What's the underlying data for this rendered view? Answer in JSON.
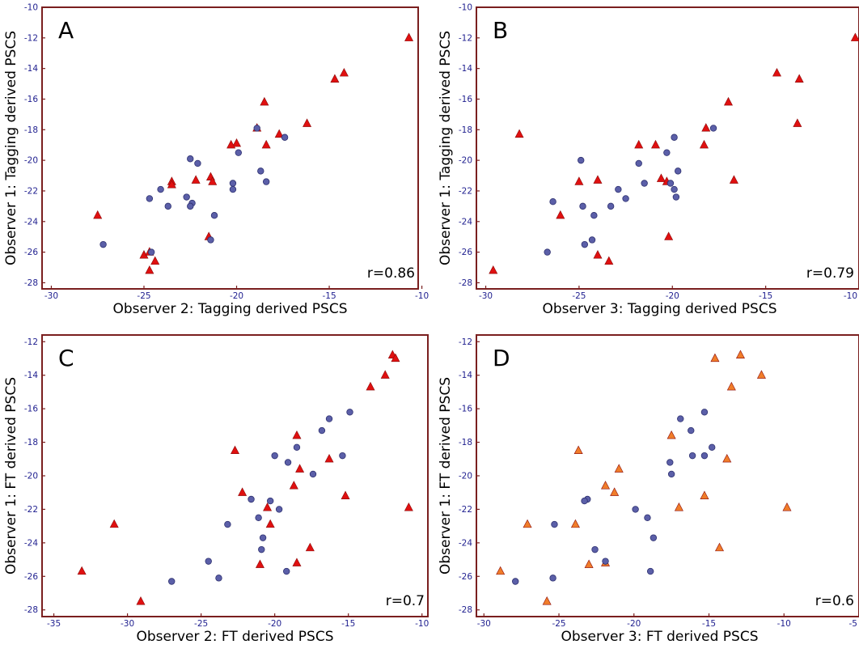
{
  "colors": {
    "frame": "#7a1f1f",
    "tick_label": "#1f1f8f",
    "circle_fill": "#5b5fa8",
    "circle_stroke": "#2e3170",
    "triangle_red": "#e01010",
    "triangle_orange": "#f07d2a"
  },
  "chart_data": [
    {
      "type": "scatter",
      "panel_label": "A",
      "xlabel": "Observer 2: Tagging derived PSCS",
      "ylabel": "Observer 1: Tagging derived PSCS",
      "annotation": "r=0.86",
      "xlim": [
        -30.5,
        -10.2
      ],
      "ylim": [
        -28.4,
        -10
      ],
      "xticks": [
        -30,
        -25,
        -20,
        -15,
        -10
      ],
      "yticks": [
        -10,
        -12,
        -14,
        -16,
        -18,
        -20,
        -22,
        -24,
        -26,
        -28
      ],
      "grid": false,
      "series": [
        {
          "marker": "triangle",
          "color": "#e01010",
          "points": [
            [
              -10.7,
              -12.0
            ],
            [
              -14.2,
              -14.3
            ],
            [
              -14.7,
              -14.7
            ],
            [
              -18.5,
              -16.2
            ],
            [
              -16.2,
              -17.6
            ],
            [
              -17.7,
              -18.3
            ],
            [
              -18.9,
              -17.9
            ],
            [
              -18.4,
              -19.0
            ],
            [
              -20.0,
              -18.9
            ],
            [
              -20.3,
              -19.0
            ],
            [
              -22.2,
              -21.3
            ],
            [
              -23.5,
              -21.4
            ],
            [
              -23.5,
              -21.6
            ],
            [
              -21.4,
              -21.1
            ],
            [
              -21.3,
              -21.4
            ],
            [
              -27.5,
              -23.6
            ],
            [
              -21.5,
              -25.0
            ],
            [
              -25.0,
              -26.2
            ],
            [
              -24.7,
              -26.0
            ],
            [
              -24.4,
              -26.6
            ],
            [
              -24.7,
              -27.2
            ]
          ]
        },
        {
          "marker": "circle",
          "color": "#5b5fa8",
          "points": [
            [
              -27.2,
              -25.5
            ],
            [
              -18.9,
              -17.9
            ],
            [
              -17.4,
              -18.5
            ],
            [
              -19.9,
              -19.5
            ],
            [
              -22.5,
              -19.9
            ],
            [
              -22.1,
              -20.2
            ],
            [
              -18.7,
              -20.7
            ],
            [
              -20.2,
              -21.5
            ],
            [
              -20.2,
              -21.9
            ],
            [
              -24.1,
              -21.9
            ],
            [
              -18.4,
              -21.4
            ],
            [
              -24.7,
              -22.5
            ],
            [
              -22.7,
              -22.4
            ],
            [
              -22.4,
              -22.8
            ],
            [
              -22.5,
              -23.0
            ],
            [
              -23.7,
              -23.0
            ],
            [
              -21.2,
              -23.6
            ],
            [
              -21.4,
              -25.2
            ],
            [
              -24.6,
              -26.0
            ]
          ]
        }
      ]
    },
    {
      "type": "scatter",
      "panel_label": "B",
      "xlabel": "Observer 3: Tagging derived PSCS",
      "ylabel": "Observer 1: Tagging derived PSCS",
      "annotation": "r=0.79",
      "xlim": [
        -30.5,
        -10
      ],
      "ylim": [
        -28.4,
        -10
      ],
      "xticks": [
        -30,
        -25,
        -20,
        -15,
        -10
      ],
      "yticks": [
        -10,
        -12,
        -14,
        -16,
        -18,
        -20,
        -22,
        -24,
        -26,
        -28
      ],
      "grid": false,
      "series": [
        {
          "marker": "triangle",
          "color": "#e01010",
          "points": [
            [
              -10.2,
              -12.0
            ],
            [
              -14.4,
              -14.3
            ],
            [
              -13.2,
              -14.7
            ],
            [
              -17.0,
              -16.2
            ],
            [
              -13.3,
              -17.6
            ],
            [
              -18.2,
              -17.9
            ],
            [
              -28.2,
              -18.3
            ],
            [
              -18.3,
              -19.0
            ],
            [
              -21.8,
              -19.0
            ],
            [
              -20.9,
              -19.0
            ],
            [
              -20.6,
              -21.2
            ],
            [
              -20.3,
              -21.4
            ],
            [
              -25.0,
              -21.4
            ],
            [
              -24.0,
              -21.3
            ],
            [
              -16.7,
              -21.3
            ],
            [
              -26.0,
              -23.6
            ],
            [
              -20.2,
              -25.0
            ],
            [
              -24.0,
              -26.2
            ],
            [
              -23.4,
              -26.6
            ],
            [
              -29.6,
              -27.2
            ]
          ]
        },
        {
          "marker": "circle",
          "color": "#5b5fa8",
          "points": [
            [
              -17.8,
              -17.9
            ],
            [
              -19.9,
              -18.5
            ],
            [
              -20.3,
              -19.5
            ],
            [
              -24.9,
              -20.0
            ],
            [
              -21.8,
              -20.2
            ],
            [
              -19.7,
              -20.7
            ],
            [
              -21.5,
              -21.5
            ],
            [
              -20.1,
              -21.5
            ],
            [
              -19.9,
              -21.9
            ],
            [
              -22.9,
              -21.9
            ],
            [
              -19.8,
              -22.4
            ],
            [
              -22.5,
              -22.5
            ],
            [
              -26.4,
              -22.7
            ],
            [
              -24.8,
              -23.0
            ],
            [
              -23.3,
              -23.0
            ],
            [
              -24.2,
              -23.6
            ],
            [
              -24.3,
              -25.2
            ],
            [
              -24.7,
              -25.5
            ],
            [
              -26.7,
              -26.0
            ]
          ]
        }
      ]
    },
    {
      "type": "scatter",
      "panel_label": "C",
      "xlabel": "Observer 2: FT derived PSCS",
      "ylabel": "Observer 1: FT derived PSCS",
      "annotation": "r=0.7",
      "xlim": [
        -35.8,
        -9.6
      ],
      "ylim": [
        -28.4,
        -11.6
      ],
      "xticks": [
        -35,
        -30,
        -25,
        -20,
        -15,
        -10
      ],
      "yticks": [
        -12,
        -14,
        -16,
        -18,
        -20,
        -22,
        -24,
        -26,
        -28
      ],
      "grid": false,
      "series": [
        {
          "marker": "triangle",
          "color": "#e01010",
          "points": [
            [
              -12.0,
              -12.8
            ],
            [
              -11.8,
              -13.0
            ],
            [
              -12.5,
              -14.0
            ],
            [
              -13.5,
              -14.7
            ],
            [
              -22.7,
              -18.5
            ],
            [
              -18.5,
              -17.6
            ],
            [
              -18.3,
              -19.6
            ],
            [
              -16.3,
              -19.0
            ],
            [
              -18.7,
              -20.6
            ],
            [
              -22.2,
              -21.0
            ],
            [
              -15.2,
              -21.2
            ],
            [
              -10.9,
              -21.9
            ],
            [
              -20.5,
              -21.9
            ],
            [
              -20.3,
              -22.9
            ],
            [
              -30.9,
              -22.9
            ],
            [
              -17.6,
              -24.3
            ],
            [
              -21.0,
              -25.3
            ],
            [
              -18.5,
              -25.2
            ],
            [
              -33.1,
              -25.7
            ],
            [
              -29.1,
              -27.5
            ]
          ]
        },
        {
          "marker": "circle",
          "color": "#5b5fa8",
          "points": [
            [
              -14.9,
              -16.2
            ],
            [
              -16.3,
              -16.6
            ],
            [
              -16.8,
              -17.3
            ],
            [
              -18.5,
              -18.3
            ],
            [
              -20.0,
              -18.8
            ],
            [
              -19.1,
              -19.2
            ],
            [
              -15.4,
              -18.8
            ],
            [
              -17.4,
              -19.9
            ],
            [
              -21.6,
              -21.4
            ],
            [
              -20.3,
              -21.5
            ],
            [
              -19.7,
              -22.0
            ],
            [
              -21.1,
              -22.5
            ],
            [
              -23.2,
              -22.9
            ],
            [
              -20.8,
              -23.7
            ],
            [
              -20.9,
              -24.4
            ],
            [
              -24.5,
              -25.1
            ],
            [
              -19.2,
              -25.7
            ],
            [
              -23.8,
              -26.1
            ],
            [
              -27.0,
              -26.3
            ]
          ]
        }
      ]
    },
    {
      "type": "scatter",
      "panel_label": "D",
      "xlabel": "Observer 3: FT derived PSCS",
      "ylabel": "Observer 1: FT derived PSCS",
      "annotation": "r=0.6",
      "xlim": [
        -30.5,
        -5
      ],
      "ylim": [
        -28.4,
        -11.6
      ],
      "xticks": [
        -30,
        -25,
        -20,
        -15,
        -10,
        -5
      ],
      "yticks": [
        -12,
        -14,
        -16,
        -18,
        -20,
        -22,
        -24,
        -26,
        -28
      ],
      "grid": false,
      "series": [
        {
          "marker": "triangle",
          "color": "#f07d2a",
          "points": [
            [
              -12.9,
              -12.8
            ],
            [
              -14.6,
              -13.0
            ],
            [
              -11.5,
              -14.0
            ],
            [
              -13.5,
              -14.7
            ],
            [
              -23.7,
              -18.5
            ],
            [
              -17.5,
              -17.6
            ],
            [
              -13.8,
              -19.0
            ],
            [
              -21.0,
              -19.6
            ],
            [
              -21.9,
              -20.6
            ],
            [
              -21.3,
              -21.0
            ],
            [
              -15.3,
              -21.2
            ],
            [
              -9.8,
              -21.9
            ],
            [
              -17.0,
              -21.9
            ],
            [
              -27.1,
              -22.9
            ],
            [
              -23.9,
              -22.9
            ],
            [
              -14.3,
              -24.3
            ],
            [
              -23.0,
              -25.3
            ],
            [
              -21.9,
              -25.2
            ],
            [
              -28.9,
              -25.7
            ],
            [
              -25.8,
              -27.5
            ]
          ]
        },
        {
          "marker": "circle",
          "color": "#5b5fa8",
          "points": [
            [
              -15.3,
              -16.2
            ],
            [
              -16.9,
              -16.6
            ],
            [
              -16.2,
              -17.3
            ],
            [
              -14.8,
              -18.3
            ],
            [
              -16.1,
              -18.8
            ],
            [
              -17.6,
              -19.2
            ],
            [
              -15.3,
              -18.8
            ],
            [
              -17.5,
              -19.9
            ],
            [
              -23.1,
              -21.4
            ],
            [
              -23.3,
              -21.5
            ],
            [
              -19.9,
              -22.0
            ],
            [
              -19.1,
              -22.5
            ],
            [
              -25.3,
              -22.9
            ],
            [
              -18.7,
              -23.7
            ],
            [
              -22.6,
              -24.4
            ],
            [
              -21.9,
              -25.1
            ],
            [
              -18.9,
              -25.7
            ],
            [
              -25.4,
              -26.1
            ],
            [
              -27.9,
              -26.3
            ]
          ]
        }
      ]
    }
  ]
}
